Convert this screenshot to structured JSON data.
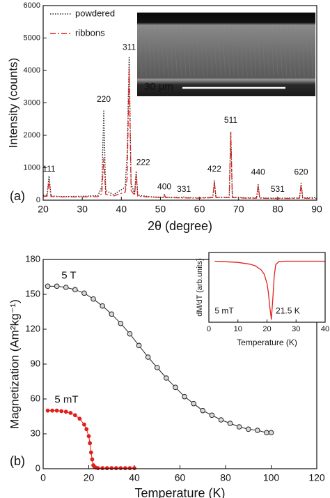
{
  "chart_data": [
    {
      "type": "line",
      "panel_label": "(a)",
      "xlabel": "2θ (degree)",
      "ylabel": "Intensity (counts)",
      "xlim": [
        20,
        90
      ],
      "xticks": [
        20,
        30,
        40,
        50,
        60,
        70,
        80,
        90
      ],
      "ylim": [
        0,
        6000
      ],
      "yticks": [
        0,
        1000,
        2000,
        3000,
        4000,
        5000,
        6000
      ],
      "legend": "upper left",
      "x": [
        20,
        21,
        21.5,
        22,
        25,
        30,
        34,
        35,
        35.5,
        36,
        38,
        41,
        41.5,
        42,
        42.5,
        43.4,
        43.8,
        44.2,
        48,
        50.7,
        51,
        51.3,
        55.7,
        56,
        56.3,
        60,
        63.4,
        63.8,
        64.2,
        67.6,
        68,
        68.4,
        72,
        74.6,
        75,
        75.4,
        79.7,
        80,
        80.3,
        85.6,
        86,
        86.4,
        90
      ],
      "series": [
        {
          "name": "powdered",
          "color": "#222222",
          "style": "dotted",
          "values": [
            150,
            150,
            750,
            130,
            110,
            120,
            140,
            400,
            2750,
            300,
            170,
            400,
            1500,
            4400,
            500,
            200,
            900,
            150,
            100,
            90,
            180,
            90,
            80,
            100,
            80,
            70,
            90,
            600,
            90,
            90,
            2100,
            90,
            70,
            70,
            480,
            70,
            60,
            90,
            60,
            70,
            520,
            70,
            80
          ]
        },
        {
          "name": "ribbons",
          "color": "#e0201b",
          "style": "dashdot",
          "values": [
            120,
            120,
            600,
            110,
            100,
            100,
            110,
            200,
            1300,
            180,
            130,
            250,
            700,
            4050,
            300,
            150,
            800,
            120,
            90,
            80,
            150,
            80,
            70,
            90,
            70,
            60,
            80,
            550,
            80,
            80,
            2100,
            80,
            60,
            60,
            450,
            60,
            50,
            80,
            50,
            60,
            500,
            60,
            50
          ]
        }
      ],
      "annotations": [
        {
          "text": "111",
          "x": 21.5,
          "y": 950
        },
        {
          "text": "220",
          "x": 35.5,
          "y": 3100
        },
        {
          "text": "311",
          "x": 42,
          "y": 4700
        },
        {
          "text": "222",
          "x": 45.6,
          "y": 1150
        },
        {
          "text": "400",
          "x": 51,
          "y": 400
        },
        {
          "text": "331",
          "x": 56,
          "y": 330
        },
        {
          "text": "422",
          "x": 63.8,
          "y": 950
        },
        {
          "text": "511",
          "x": 68,
          "y": 2450
        },
        {
          "text": "440",
          "x": 75,
          "y": 850
        },
        {
          "text": "531",
          "x": 80,
          "y": 330
        },
        {
          "text": "620",
          "x": 86,
          "y": 850
        }
      ],
      "inset_image": {
        "scale_bar": "30 μm"
      }
    },
    {
      "type": "scatter",
      "panel_label": "(b)",
      "xlabel": "Temperature (K)",
      "ylabel": "Magnetization (Am²kg⁻¹)",
      "xlim": [
        0,
        120
      ],
      "xticks": [
        0,
        20,
        40,
        60,
        80,
        100,
        120
      ],
      "ylim": [
        0,
        180
      ],
      "yticks": [
        0,
        30,
        60,
        90,
        120,
        150,
        180
      ],
      "series": [
        {
          "name": "5 T",
          "color": "#222222",
          "x": [
            2,
            6,
            10,
            14,
            18,
            22,
            26,
            30,
            34,
            38,
            42,
            46,
            50,
            54,
            58,
            62,
            66,
            70,
            74,
            78,
            82,
            86,
            90,
            94,
            98,
            100
          ],
          "values": [
            157,
            157,
            156,
            154,
            151,
            146,
            140,
            133,
            125,
            116,
            106,
            96,
            87,
            78,
            70,
            62,
            56,
            50,
            46,
            42,
            39,
            36,
            34,
            33,
            31,
            31
          ]
        },
        {
          "name": "5 mT",
          "color": "#e0201b",
          "x": [
            2,
            4,
            6,
            8,
            10,
            12,
            14,
            16,
            18,
            19,
            20,
            20.5,
            21,
            21.5,
            22,
            22.5,
            23,
            24,
            26,
            28,
            30,
            32,
            34,
            36,
            38,
            40
          ],
          "values": [
            50,
            50,
            50,
            49.5,
            49,
            48,
            46,
            43,
            38,
            34,
            28,
            22,
            14,
            8,
            3,
            1.5,
            1,
            0.5,
            0.5,
            0.5,
            0.5,
            0.5,
            0.5,
            0.5,
            0.5,
            0.5
          ]
        }
      ],
      "annotations": [
        {
          "text": "5 T",
          "x": 8,
          "y": 166,
          "color": "#222222"
        },
        {
          "text": "5 mT",
          "x": 5,
          "y": 59,
          "color": "#e0201b"
        }
      ]
    },
    {
      "type": "line",
      "xlabel": "Temperature (K)",
      "ylabel": "dM/dT (arb.units)",
      "xlim": [
        0,
        40
      ],
      "xticks": [
        0,
        10,
        20,
        30,
        40
      ],
      "ylim": [
        -1.05,
        0.15
      ],
      "series": [
        {
          "color": "#e0201b",
          "x": [
            2,
            6,
            10,
            14,
            16,
            18,
            19,
            20,
            20.5,
            21,
            21.5,
            22,
            22.5,
            23,
            24,
            26,
            30,
            35,
            40
          ],
          "values": [
            0,
            -0.01,
            -0.02,
            -0.05,
            -0.08,
            -0.15,
            -0.22,
            -0.38,
            -0.55,
            -0.8,
            -1,
            -0.65,
            -0.25,
            -0.06,
            -0.01,
            0,
            0,
            0,
            0
          ]
        }
      ],
      "annotations": [
        {
          "text": "5 mT",
          "x": 2,
          "y": -0.86,
          "color": "#222222"
        },
        {
          "text": "21.5 K",
          "x": 23,
          "y": -0.86,
          "color": "#222222"
        }
      ]
    }
  ]
}
